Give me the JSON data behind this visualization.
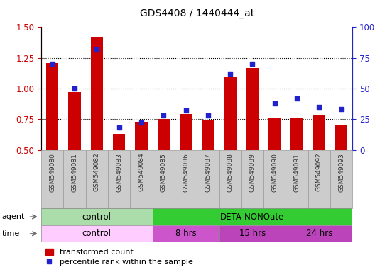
{
  "title": "GDS4408 / 1440444_at",
  "samples": [
    "GSM549080",
    "GSM549081",
    "GSM549082",
    "GSM549083",
    "GSM549084",
    "GSM549085",
    "GSM549086",
    "GSM549087",
    "GSM549088",
    "GSM549089",
    "GSM549090",
    "GSM549091",
    "GSM549092",
    "GSM549093"
  ],
  "transformed_count": [
    1.21,
    0.97,
    1.42,
    0.63,
    0.73,
    0.75,
    0.79,
    0.74,
    1.09,
    1.17,
    0.76,
    0.76,
    0.78,
    0.7
  ],
  "percentile_rank": [
    70,
    50,
    82,
    18,
    22,
    28,
    32,
    28,
    62,
    70,
    38,
    42,
    35,
    33
  ],
  "ylim_left": [
    0.5,
    1.5
  ],
  "ylim_right": [
    0,
    100
  ],
  "yticks_left": [
    0.5,
    0.75,
    1.0,
    1.25,
    1.5
  ],
  "yticks_right": [
    0,
    25,
    50,
    75,
    100
  ],
  "bar_color": "#cc0000",
  "dot_color": "#2222cc",
  "bar_bottom": 0.5,
  "agent_groups": [
    {
      "label": "control",
      "start": 0,
      "end": 5,
      "color": "#aaddaa"
    },
    {
      "label": "DETA-NONOate",
      "start": 5,
      "end": 14,
      "color": "#33cc33"
    }
  ],
  "time_groups": [
    {
      "label": "control",
      "start": 0,
      "end": 5,
      "color": "#ffccff"
    },
    {
      "label": "8 hrs",
      "start": 5,
      "end": 8,
      "color": "#cc55cc"
    },
    {
      "label": "15 hrs",
      "start": 8,
      "end": 11,
      "color": "#bb44bb"
    },
    {
      "label": "24 hrs",
      "start": 11,
      "end": 14,
      "color": "#bb44bb"
    }
  ],
  "legend_bar_label": "transformed count",
  "legend_dot_label": "percentile rank within the sample",
  "grid_yticks": [
    0.75,
    1.0,
    1.25
  ],
  "bar_color_hex": "#cc0000",
  "dot_color_hex": "#2222cc",
  "left_axis_color": "#cc0000",
  "right_axis_color": "#2222cc",
  "tick_bg_color": "#cccccc",
  "tick_cell_edge_color": "#999999"
}
